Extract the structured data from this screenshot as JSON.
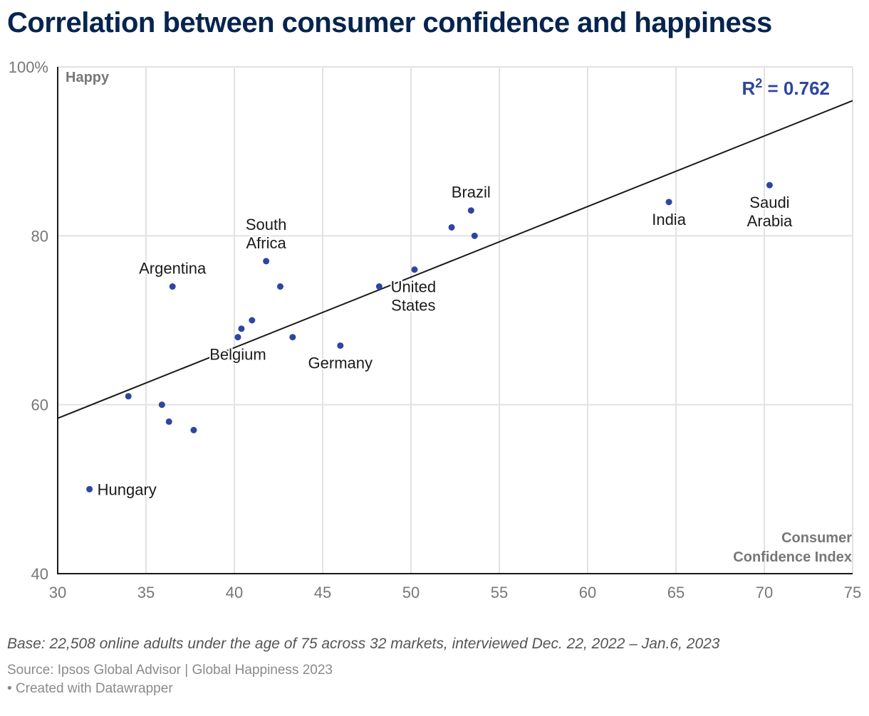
{
  "title": "Correlation between consumer confidence and happiness",
  "notes": "Base: 22,508 online adults under the age of 75 across 32 markets, interviewed Dec. 22, 2022 – Jan.6, 2023",
  "source": "Source: Ipsos Global Advisor | Global Happiness 2023",
  "credit": "• Created with Datawrapper",
  "colors": {
    "title": "#06244f",
    "point": "#2e46a0",
    "r2": "#2e46a0",
    "axis": "#1a1a1a",
    "grid": "#e2e2e2",
    "tick_label": "#777777",
    "axis_title": "#777777",
    "trendline": "#1a1a1a"
  },
  "chart_data": {
    "type": "scatter",
    "title": "Correlation between consumer confidence and happiness",
    "xlabel": "Consumer Confidence Index",
    "ylabel": "Happy",
    "xlim": [
      30,
      75
    ],
    "ylim": [
      40,
      100
    ],
    "x_ticks": [
      30,
      35,
      40,
      45,
      50,
      55,
      60,
      65,
      70,
      75
    ],
    "y_ticks": [
      40,
      60,
      80,
      100
    ],
    "y_tick_labels": [
      "40",
      "60",
      "80",
      "100%"
    ],
    "grid": true,
    "annotation": {
      "text_base": "R",
      "superscript": "2",
      "text_rest": " = 0.762",
      "placement": "top-right"
    },
    "trendline": {
      "x": [
        30,
        75
      ],
      "y": [
        58.4,
        96.0
      ]
    },
    "points": [
      {
        "x": 31.8,
        "y": 50,
        "label": "Hungary",
        "label_pos": "right"
      },
      {
        "x": 34.0,
        "y": 61,
        "label": ""
      },
      {
        "x": 35.9,
        "y": 60,
        "label": ""
      },
      {
        "x": 36.3,
        "y": 58,
        "label": ""
      },
      {
        "x": 37.7,
        "y": 57,
        "label": ""
      },
      {
        "x": 36.5,
        "y": 74,
        "label": "Argentina",
        "label_pos": "top"
      },
      {
        "x": 41.8,
        "y": 77,
        "label": "South Africa",
        "label_pos": "top"
      },
      {
        "x": 42.6,
        "y": 74,
        "label": ""
      },
      {
        "x": 41.0,
        "y": 70,
        "label": ""
      },
      {
        "x": 40.4,
        "y": 69,
        "label": ""
      },
      {
        "x": 40.2,
        "y": 68,
        "label": "Belgium",
        "label_pos": "bottom"
      },
      {
        "x": 43.3,
        "y": 68,
        "label": ""
      },
      {
        "x": 46.0,
        "y": 67,
        "label": "Germany",
        "label_pos": "bottom"
      },
      {
        "x": 48.2,
        "y": 74,
        "label": "United States",
        "label_pos": "right"
      },
      {
        "x": 50.2,
        "y": 76,
        "label": ""
      },
      {
        "x": 53.4,
        "y": 83,
        "label": "Brazil",
        "label_pos": "top"
      },
      {
        "x": 52.3,
        "y": 81,
        "label": ""
      },
      {
        "x": 53.6,
        "y": 80,
        "label": ""
      },
      {
        "x": 64.6,
        "y": 84,
        "label": "India",
        "label_pos": "bottom"
      },
      {
        "x": 70.3,
        "y": 86,
        "label": "Saudi Arabia",
        "label_pos": "bottom"
      }
    ]
  }
}
